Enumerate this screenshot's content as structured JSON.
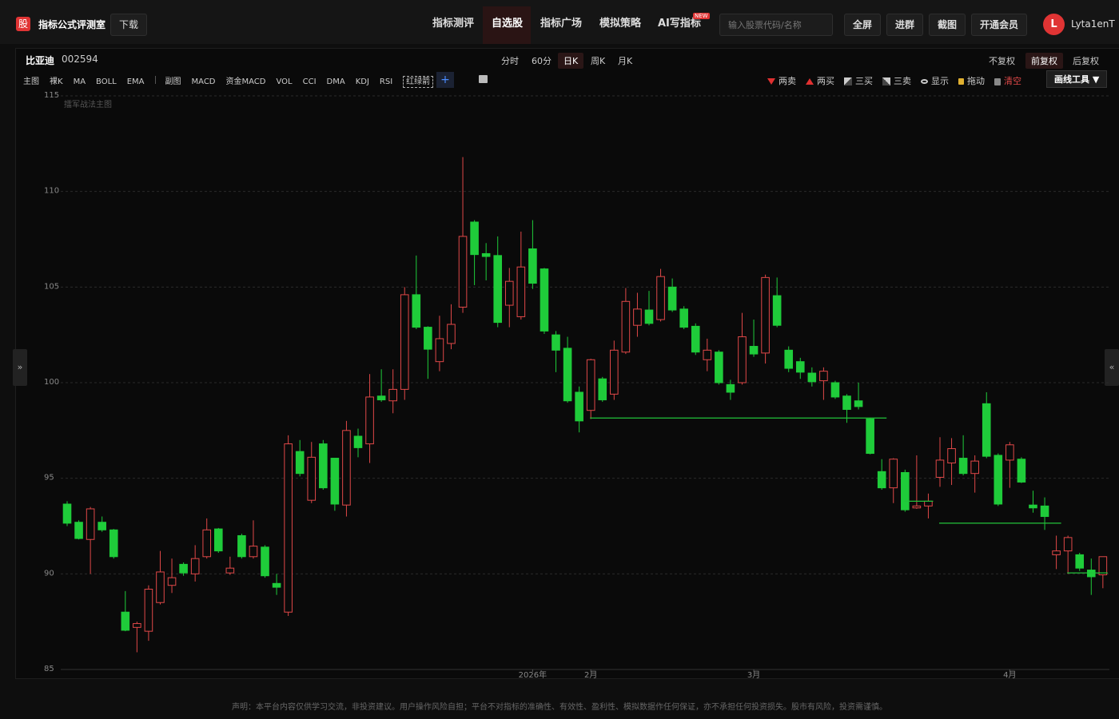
{
  "header": {
    "logo": "股",
    "app_name": "指标公式评测室",
    "download": "下载",
    "nav": [
      "指标测评",
      "自选股",
      "指标广场",
      "模拟策略",
      "AI写指标"
    ],
    "new_badge": "NEW",
    "search_placeholder": "输入股票代码/名称",
    "buttons": [
      "全屏",
      "进群",
      "截图",
      "开通会员"
    ],
    "avatar": "L",
    "user": "Lyta1enT"
  },
  "stock": {
    "name": "比亚迪",
    "code": "002594"
  },
  "periods": [
    "分时",
    "60分",
    "日K",
    "周K",
    "月K"
  ],
  "adjust": [
    "不复权",
    "前复权",
    "后复权"
  ],
  "main_indicators": [
    "主图",
    "裸K",
    "MA",
    "BOLL",
    "EMA"
  ],
  "sub_indicators": [
    "副图",
    "MACD",
    "资金MACD",
    "VOL",
    "CCI",
    "DMA",
    "KDJ",
    "RSI",
    "红绿箭"
  ],
  "add": "+",
  "tools": [
    "两卖",
    "两买",
    "三买",
    "三卖",
    "显示",
    "拖动",
    "清空"
  ],
  "drawing_tool": "画线工具 ▼",
  "side_handles": [
    "»",
    "«"
  ],
  "watermark": "擂军战法主图",
  "disclaimer": "声明：本平台内容仅供学习交流，非投资建议。用户操作风险自担；平台不对指标的准确性、有效性、盈利性、模拟数据作任何保证，亦不承担任何投资损失。股市有风险，投资需谨慎。",
  "chart_data": {
    "type": "candlestick",
    "up_color": "#e04848",
    "down_color": "#1fcc3a",
    "level_color": "#22c33a",
    "grid": true,
    "categories": [
      null,
      null,
      null,
      null,
      null,
      null,
      null,
      null,
      null,
      null,
      null,
      null,
      null,
      null,
      null,
      null,
      null,
      null,
      null,
      null,
      null,
      null,
      null,
      null,
      null,
      null,
      null,
      null,
      null,
      null,
      null,
      null,
      null,
      null,
      null,
      null,
      null,
      null,
      null,
      null,
      "2026年",
      null,
      null,
      null,
      null,
      "2月",
      null,
      null,
      null,
      null,
      null,
      null,
      null,
      null,
      null,
      null,
      null,
      null,
      null,
      "3月",
      null,
      null,
      null,
      null,
      null,
      null,
      null,
      null,
      null,
      null,
      null,
      null,
      null,
      null,
      null,
      null,
      null,
      null,
      null,
      null,
      null,
      "4月",
      null,
      null,
      null,
      null,
      null,
      null,
      null,
      null
    ],
    "open": [
      93.65,
      92.7,
      91.8,
      92.7,
      92.3,
      88.0,
      87.2,
      87.0,
      88.5,
      89.4,
      90.5,
      90.0,
      90.9,
      92.35,
      90.05,
      92.0,
      90.9,
      91.4,
      89.5,
      88.0,
      96.4,
      93.85,
      96.8,
      96.05,
      93.6,
      97.2,
      96.8,
      99.3,
      99.05,
      99.65,
      104.6,
      102.9,
      101.1,
      102.05,
      103.95,
      108.4,
      106.75,
      106.65,
      104.05,
      103.45,
      107.0,
      105.95,
      102.5,
      101.8,
      99.5,
      98.55,
      100.2,
      99.4,
      101.6,
      103.0,
      103.8,
      103.3,
      105.0,
      103.85,
      102.95,
      101.2,
      101.6,
      99.9,
      100.0,
      101.9,
      101.55,
      104.55,
      101.7,
      101.1,
      100.5,
      100.1,
      100.0,
      99.3,
      99.05,
      98.1,
      95.35,
      94.5,
      95.3,
      93.45,
      93.55,
      95.05,
      95.8,
      96.05,
      95.25,
      98.9,
      96.2,
      95.95,
      96.0,
      93.6,
      93.55,
      91.0,
      91.2,
      91.0,
      90.2,
      89.95
    ],
    "high": [
      93.8,
      92.8,
      93.5,
      93.0,
      92.35,
      89.1,
      87.5,
      89.4,
      91.2,
      90.8,
      90.6,
      91.5,
      92.9,
      92.4,
      90.9,
      92.1,
      92.8,
      91.5,
      90.0,
      97.25,
      97.0,
      96.9,
      97.0,
      96.05,
      98.0,
      97.6,
      100.45,
      100.7,
      100.7,
      105.0,
      106.65,
      102.95,
      103.5,
      104.1,
      111.8,
      108.5,
      107.3,
      107.65,
      106.0,
      107.9,
      108.5,
      106.0,
      102.7,
      102.4,
      99.8,
      101.25,
      100.3,
      102.2,
      104.95,
      104.7,
      104.8,
      105.95,
      105.45,
      104.0,
      103.1,
      102.3,
      101.7,
      100.15,
      103.65,
      103.3,
      105.65,
      105.5,
      101.9,
      101.3,
      100.8,
      100.8,
      100.1,
      99.4,
      100.0,
      98.15,
      96.0,
      96.05,
      95.45,
      96.2,
      94.2,
      97.15,
      97.1,
      97.25,
      96.2,
      99.5,
      96.3,
      96.9,
      96.1,
      94.35,
      94.0,
      92.0,
      92.0,
      91.1,
      90.8,
      90.9
    ],
    "low": [
      92.5,
      91.8,
      90.0,
      92.2,
      90.8,
      87.0,
      85.9,
      86.5,
      88.4,
      89.0,
      89.9,
      89.6,
      90.8,
      91.1,
      89.95,
      90.8,
      90.8,
      89.8,
      88.9,
      87.8,
      95.1,
      93.7,
      94.4,
      93.3,
      93.0,
      96.1,
      95.8,
      99.0,
      98.4,
      99.1,
      102.8,
      100.2,
      100.6,
      101.75,
      103.65,
      105.1,
      105.35,
      102.9,
      102.9,
      103.3,
      104.9,
      102.55,
      100.55,
      98.95,
      97.4,
      98.1,
      99.0,
      99.1,
      101.5,
      102.4,
      103.0,
      103.2,
      103.7,
      102.8,
      101.45,
      100.6,
      99.9,
      99.1,
      99.9,
      101.35,
      101.0,
      102.9,
      100.55,
      100.2,
      99.8,
      99.1,
      99.15,
      97.9,
      98.6,
      96.25,
      94.4,
      93.7,
      93.25,
      93.4,
      92.9,
      94.55,
      94.65,
      95.15,
      94.25,
      96.05,
      93.55,
      94.5,
      94.75,
      93.2,
      92.3,
      90.25,
      90.0,
      90.15,
      88.9,
      89.25
    ],
    "close": [
      92.65,
      91.85,
      93.4,
      92.3,
      90.9,
      87.05,
      87.4,
      89.2,
      90.1,
      89.8,
      90.05,
      90.8,
      92.3,
      91.2,
      90.3,
      90.9,
      91.45,
      89.9,
      89.3,
      96.8,
      95.25,
      96.1,
      94.5,
      93.65,
      97.5,
      96.6,
      99.25,
      99.1,
      99.65,
      104.6,
      102.9,
      101.75,
      102.3,
      103.05,
      107.65,
      106.7,
      106.6,
      103.15,
      105.3,
      106.05,
      105.2,
      102.7,
      101.7,
      99.05,
      98.0,
      101.2,
      99.1,
      101.7,
      104.25,
      103.85,
      103.1,
      105.55,
      103.8,
      102.9,
      101.6,
      101.7,
      100.0,
      99.5,
      102.4,
      101.5,
      105.5,
      103.0,
      100.75,
      100.55,
      100.05,
      100.6,
      99.25,
      98.6,
      98.75,
      96.3,
      94.5,
      96.0,
      93.35,
      93.55,
      93.8,
      95.95,
      96.55,
      95.25,
      95.9,
      96.15,
      93.65,
      96.75,
      94.8,
      93.45,
      93.0,
      91.2,
      91.9,
      90.3,
      89.85,
      90.9
    ],
    "levels": [
      {
        "value": 98.15,
        "from": 45,
        "to": 70
      },
      {
        "value": 93.8,
        "from": 72,
        "to": 74
      },
      {
        "value": 92.65,
        "from": 75,
        "to": 85
      },
      {
        "value": 90.05,
        "from": 86,
        "to": 89
      }
    ],
    "ylim": [
      85,
      115
    ],
    "yticks": [
      85,
      90,
      95,
      100,
      105,
      110,
      115
    ]
  }
}
